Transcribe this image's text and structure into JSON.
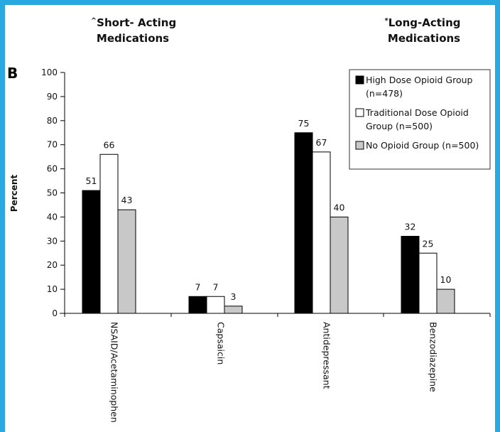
{
  "headers": {
    "short_marker": "^",
    "short_line1": "Short- Acting",
    "short_line2": "Medications",
    "long_marker": "*",
    "long_line1": "Long-Acting",
    "long_line2": "Medications"
  },
  "panel_letter": "B",
  "colors": {
    "frame": "#2aa8e0",
    "series": [
      "#000000",
      "#ffffff",
      "#c8c8c8"
    ]
  },
  "chart_data": {
    "type": "bar",
    "ylabel": "Percent",
    "xlabel": "",
    "ylim": [
      0,
      100
    ],
    "yticks": [
      0,
      10,
      20,
      30,
      40,
      50,
      60,
      70,
      80,
      90,
      100
    ],
    "categories": [
      "NSAID/Acetaminophen",
      "Capsaicin",
      "Antidepressant",
      "Benzodiazepine"
    ],
    "series": [
      {
        "name": "High Dose Opioid Group",
        "name_line2": "(n=478)",
        "values": [
          51,
          7,
          75,
          32
        ]
      },
      {
        "name": "Traditional Dose Opioid",
        "name_line2": "Group (n=500)",
        "values": [
          66,
          7,
          67,
          25
        ]
      },
      {
        "name": "No Opioid Group (n=500)",
        "name_line2": "",
        "values": [
          43,
          3,
          40,
          10
        ]
      }
    ],
    "data_labels": [
      [
        "51",
        "7",
        "75",
        "32"
      ],
      [
        "66",
        "7",
        "67",
        "25"
      ],
      [
        "43",
        "3",
        "40",
        "10"
      ]
    ],
    "legend_position": "top-right",
    "grid": false
  }
}
